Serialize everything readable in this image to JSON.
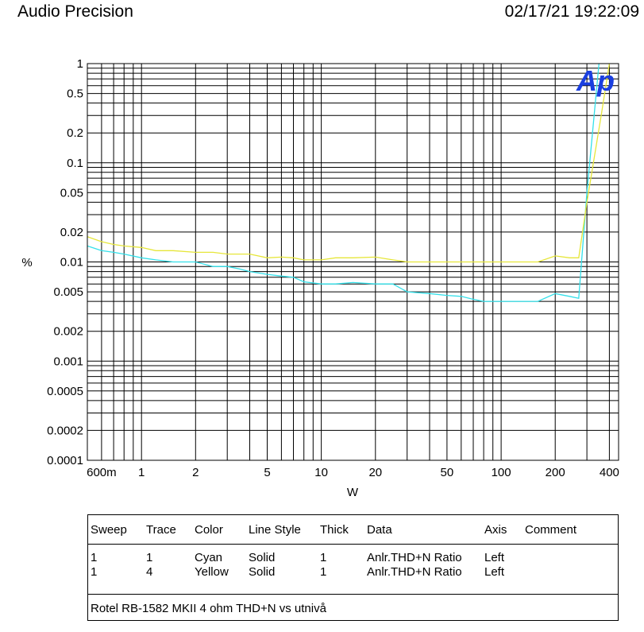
{
  "header": {
    "brand": "Audio Precision",
    "timestamp": "02/17/21 19:22:09"
  },
  "logo": {
    "text": "Ap",
    "color": "#1a3fe0"
  },
  "chart_data": {
    "type": "line",
    "xscale": "log",
    "yscale": "log",
    "xlim": [
      0.5,
      450
    ],
    "ylim": [
      0.0001,
      1
    ],
    "xlabel": "W",
    "ylabel": "%",
    "x_tick_labels": [
      {
        "v": 0.6,
        "t": "600m"
      },
      {
        "v": 1,
        "t": "1"
      },
      {
        "v": 2,
        "t": "2"
      },
      {
        "v": 5,
        "t": "5"
      },
      {
        "v": 10,
        "t": "10"
      },
      {
        "v": 20,
        "t": "20"
      },
      {
        "v": 50,
        "t": "50"
      },
      {
        "v": 100,
        "t": "100"
      },
      {
        "v": 200,
        "t": "200"
      },
      {
        "v": 400,
        "t": "400"
      }
    ],
    "y_tick_labels": [
      {
        "v": 1,
        "t": "1"
      },
      {
        "v": 0.5,
        "t": "0.5"
      },
      {
        "v": 0.2,
        "t": "0.2"
      },
      {
        "v": 0.1,
        "t": "0.1"
      },
      {
        "v": 0.05,
        "t": "0.05"
      },
      {
        "v": 0.02,
        "t": "0.02"
      },
      {
        "v": 0.01,
        "t": "0.01"
      },
      {
        "v": 0.005,
        "t": "0.005"
      },
      {
        "v": 0.002,
        "t": "0.002"
      },
      {
        "v": 0.001,
        "t": "0.001"
      },
      {
        "v": 0.0005,
        "t": "0.0005"
      },
      {
        "v": 0.0002,
        "t": "0.0002"
      },
      {
        "v": 0.0001,
        "t": "0.0001"
      }
    ],
    "series": [
      {
        "name": "Cyan",
        "color": "#33e0ea",
        "x": [
          0.5,
          0.6,
          0.7,
          0.8,
          1.0,
          1.2,
          1.5,
          2.0,
          2.5,
          3.0,
          3.5,
          4.0,
          5.0,
          6.0,
          7.0,
          8.0,
          10,
          12,
          15,
          20,
          25,
          30,
          40,
          50,
          60,
          70,
          80,
          100,
          130,
          160,
          200,
          240,
          270,
          300,
          350
        ],
        "y": [
          0.0145,
          0.013,
          0.0125,
          0.012,
          0.011,
          0.0105,
          0.01,
          0.01,
          0.009,
          0.009,
          0.0085,
          0.008,
          0.0075,
          0.0072,
          0.007,
          0.0063,
          0.006,
          0.006,
          0.0062,
          0.006,
          0.006,
          0.005,
          0.0048,
          0.0046,
          0.0045,
          0.0042,
          0.004,
          0.004,
          0.004,
          0.004,
          0.0048,
          0.0045,
          0.0043,
          0.05,
          1.0
        ]
      },
      {
        "name": "Yellow",
        "color": "#e6e63a",
        "x": [
          0.5,
          0.6,
          0.7,
          0.8,
          1.0,
          1.2,
          1.5,
          2.0,
          2.5,
          3.0,
          4.0,
          5.0,
          6.0,
          7.0,
          8.0,
          10,
          12,
          15,
          20,
          25,
          30,
          40,
          50,
          70,
          100,
          130,
          160,
          200,
          240,
          270,
          300,
          360,
          400
        ],
        "y": [
          0.018,
          0.016,
          0.015,
          0.0145,
          0.014,
          0.013,
          0.013,
          0.0125,
          0.0125,
          0.012,
          0.012,
          0.011,
          0.0112,
          0.011,
          0.0105,
          0.0105,
          0.011,
          0.011,
          0.0112,
          0.0105,
          0.01,
          0.01,
          0.01,
          0.01,
          0.01,
          0.01,
          0.01,
          0.0115,
          0.011,
          0.011,
          0.04,
          0.3,
          1.0
        ]
      }
    ]
  },
  "legend": {
    "headers": [
      "Sweep",
      "Trace",
      "Color",
      "Line Style",
      "Thick",
      "Data",
      "Axis",
      "Comment"
    ],
    "rows": [
      [
        "1",
        "1",
        "Cyan",
        "Solid",
        "1",
        "Anlr.THD+N Ratio",
        "Left",
        ""
      ],
      [
        "1",
        "4",
        "Yellow",
        "Solid",
        "1",
        "Anlr.THD+N Ratio",
        "Left",
        ""
      ]
    ],
    "comment": "Rotel RB-1582 MKII 4 ohm THD+N vs utnivå"
  }
}
